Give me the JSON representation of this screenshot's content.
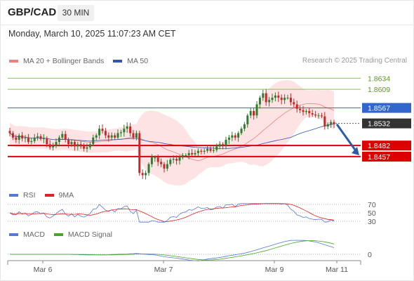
{
  "header": {
    "symbol": "GBP/CAD",
    "timeframe": "30 MIN",
    "datetime": "Monday, March 10, 2025 11:07:23 AM CET"
  },
  "legends": {
    "price": [
      {
        "label": "MA 20 + Bollinger Bands",
        "color": "#f08080"
      },
      {
        "label": "MA 50",
        "color": "#3355aa"
      }
    ],
    "rsi": [
      {
        "label": "RSI",
        "color": "#5577dd"
      },
      {
        "label": "9MA",
        "color": "#dd2222"
      }
    ],
    "macd": [
      {
        "label": "MACD",
        "color": "#5577dd"
      },
      {
        "label": "MACD Signal",
        "color": "#44aa22"
      }
    ]
  },
  "credit": "Research © 2025 Trading Central",
  "colors": {
    "up_candle": "#2e7d32",
    "down_candle": "#c62828",
    "band_fill": "#fde0e0",
    "resistance": "#8bc34a",
    "pivot": "#3366cc",
    "support": "#dd0000",
    "current": "#333333",
    "arrow": "#2a5caa"
  },
  "chart_data": [
    {
      "type": "candlestick",
      "title": "GBP/CAD",
      "ylim": [
        1.8395,
        1.866
      ],
      "x_ticks": [
        "Mar 6",
        "Mar 7",
        "Mar 9",
        "Mar 11"
      ],
      "levels": [
        {
          "value": 1.8634,
          "label": "1.8634",
          "role": "resistance"
        },
        {
          "value": 1.8609,
          "label": "1.8609",
          "role": "resistance"
        },
        {
          "value": 1.8567,
          "label": "1.8567",
          "role": "pivot"
        },
        {
          "value": 1.8532,
          "label": "1.8532",
          "role": "current"
        },
        {
          "value": 1.8482,
          "label": "1.8482",
          "role": "support"
        },
        {
          "value": 1.8457,
          "label": "1.8457",
          "role": "support"
        }
      ],
      "close_series": [
        1.851,
        1.85,
        1.8495,
        1.8505,
        1.8498,
        1.85,
        1.849,
        1.8492,
        1.85,
        1.8503,
        1.8497,
        1.8498,
        1.8485,
        1.8478,
        1.8482,
        1.849,
        1.85,
        1.8508,
        1.8495,
        1.8485,
        1.849,
        1.848,
        1.8485,
        1.848,
        1.8475,
        1.8478,
        1.8485,
        1.85,
        1.8505,
        1.852,
        1.8515,
        1.8505,
        1.85,
        1.8505,
        1.85,
        1.851,
        1.8512,
        1.852,
        1.8525,
        1.851,
        1.85,
        1.851,
        1.842,
        1.8415,
        1.842,
        1.844,
        1.8455,
        1.8455,
        1.8445,
        1.844,
        1.843,
        1.844,
        1.845,
        1.8452,
        1.8448,
        1.8455,
        1.846,
        1.846,
        1.8465,
        1.8462,
        1.8465,
        1.847,
        1.8468,
        1.847,
        1.8475,
        1.847,
        1.8472,
        1.848,
        1.8485,
        1.8482,
        1.8495,
        1.85,
        1.8505,
        1.85,
        1.851,
        1.852,
        1.853,
        1.855,
        1.856,
        1.855,
        1.8575,
        1.859,
        1.86,
        1.858,
        1.8585,
        1.859,
        1.8595,
        1.859,
        1.8585,
        1.859,
        1.859,
        1.858,
        1.8575,
        1.8565,
        1.8562,
        1.8558,
        1.856,
        1.8555,
        1.8552,
        1.855,
        1.855,
        1.8548,
        1.8525,
        1.853,
        1.8535,
        1.853
      ],
      "rsi_levels": [
        70,
        50,
        30
      ],
      "macd_levels": [
        0
      ]
    }
  ]
}
